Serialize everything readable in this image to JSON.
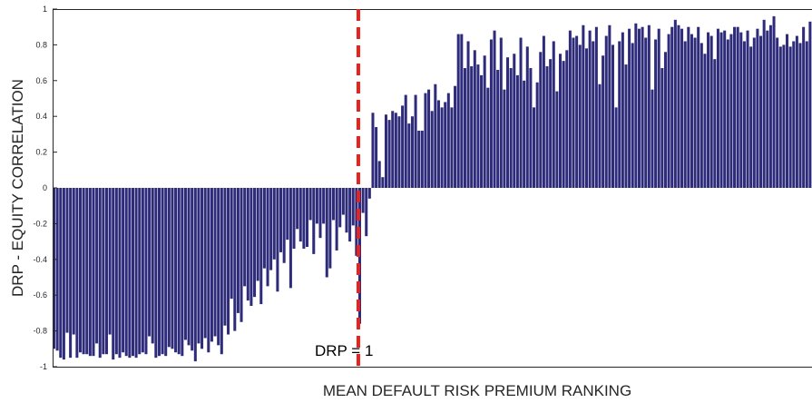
{
  "chart_data": {
    "type": "bar",
    "xlabel": "MEAN DEFAULT RISK PREMIUM RANKING",
    "ylabel": "DRP - EQUITY CORRELATION",
    "ylim": [
      -1,
      1
    ],
    "yticks": [
      -1,
      -0.8,
      -0.6,
      -0.4,
      -0.2,
      0,
      0.2,
      0.4,
      0.6,
      0.8,
      1
    ],
    "ytick_labels": [
      "-1",
      "-0.8",
      "-0.6",
      "-0.4",
      "-0.2",
      "0",
      "0.2",
      "0.4",
      "0.6",
      "0.8",
      "1"
    ],
    "grid": false,
    "bar_color": "#2e2b7a",
    "reference_line": {
      "x_index": 93,
      "label": "DRP = 1",
      "color": "#e8231e",
      "style": "dashed"
    },
    "values": [
      -0.9,
      -0.91,
      -0.95,
      -0.96,
      -0.81,
      -0.95,
      -0.82,
      -0.95,
      -0.92,
      -0.93,
      -0.93,
      -0.94,
      -0.94,
      -0.87,
      -0.95,
      -0.93,
      -0.93,
      -0.82,
      -0.96,
      -0.93,
      -0.95,
      -0.92,
      -0.94,
      -0.95,
      -0.94,
      -0.95,
      -0.93,
      -0.92,
      -0.93,
      -0.83,
      -0.87,
      -0.95,
      -0.94,
      -0.93,
      -0.94,
      -0.89,
      -0.9,
      -0.92,
      -0.93,
      -0.94,
      -0.85,
      -0.88,
      -0.91,
      -0.97,
      -0.87,
      -0.9,
      -0.84,
      -0.92,
      -0.86,
      -0.83,
      -0.88,
      -0.93,
      -0.77,
      -0.82,
      -0.62,
      -0.8,
      -0.7,
      -0.75,
      -0.55,
      -0.63,
      -0.66,
      -0.61,
      -0.52,
      -0.65,
      -0.45,
      -0.55,
      -0.46,
      -0.4,
      -0.58,
      -0.36,
      -0.42,
      -0.29,
      -0.56,
      -0.34,
      -0.23,
      -0.3,
      -0.34,
      -0.33,
      -0.18,
      -0.37,
      -0.2,
      -0.28,
      -0.2,
      -0.5,
      -0.45,
      -0.18,
      -0.35,
      -0.22,
      -0.15,
      -0.25,
      -0.3,
      -0.21,
      -0.38,
      -0.76,
      -0.14,
      -0.27,
      -0.06,
      0.42,
      0.34,
      0.15,
      0.06,
      0.41,
      0.38,
      0.43,
      0.42,
      0.4,
      0.46,
      0.52,
      0.36,
      0.4,
      0.52,
      0.32,
      0.32,
      0.53,
      0.55,
      0.43,
      0.58,
      0.49,
      0.45,
      0.48,
      0.53,
      0.45,
      0.57,
      0.86,
      0.86,
      0.67,
      0.82,
      0.68,
      0.77,
      0.69,
      0.63,
      0.74,
      0.56,
      0.83,
      0.88,
      0.66,
      0.84,
      0.55,
      0.73,
      0.67,
      0.75,
      0.63,
      0.84,
      0.6,
      0.79,
      0.67,
      0.45,
      0.59,
      0.76,
      0.85,
      0.68,
      0.72,
      0.82,
      0.54,
      0.75,
      0.71,
      0.77,
      0.88,
      0.84,
      0.85,
      0.8,
      0.91,
      0.78,
      0.88,
      0.82,
      0.9,
      0.58,
      0.74,
      0.85,
      0.91,
      0.8,
      0.45,
      0.82,
      0.87,
      0.69,
      0.89,
      0.81,
      0.92,
      0.89,
      0.9,
      0.84,
      0.91,
      0.55,
      0.83,
      0.89,
      0.67,
      0.76,
      0.86,
      0.9,
      0.94,
      0.91,
      0.89,
      0.82,
      0.9,
      0.86,
      0.84,
      0.9,
      0.81,
      0.75,
      0.87,
      0.85,
      0.72,
      0.89,
      0.87,
      0.88,
      0.83,
      0.86,
      0.9,
      0.9,
      0.87,
      0.82,
      0.88,
      0.79,
      0.84,
      0.89,
      0.85,
      0.94,
      0.88,
      0.91,
      0.96,
      0.84,
      0.79,
      0.8,
      0.86,
      0.79,
      0.82,
      0.85,
      0.81,
      0.9,
      0.82,
      0.93
    ]
  }
}
